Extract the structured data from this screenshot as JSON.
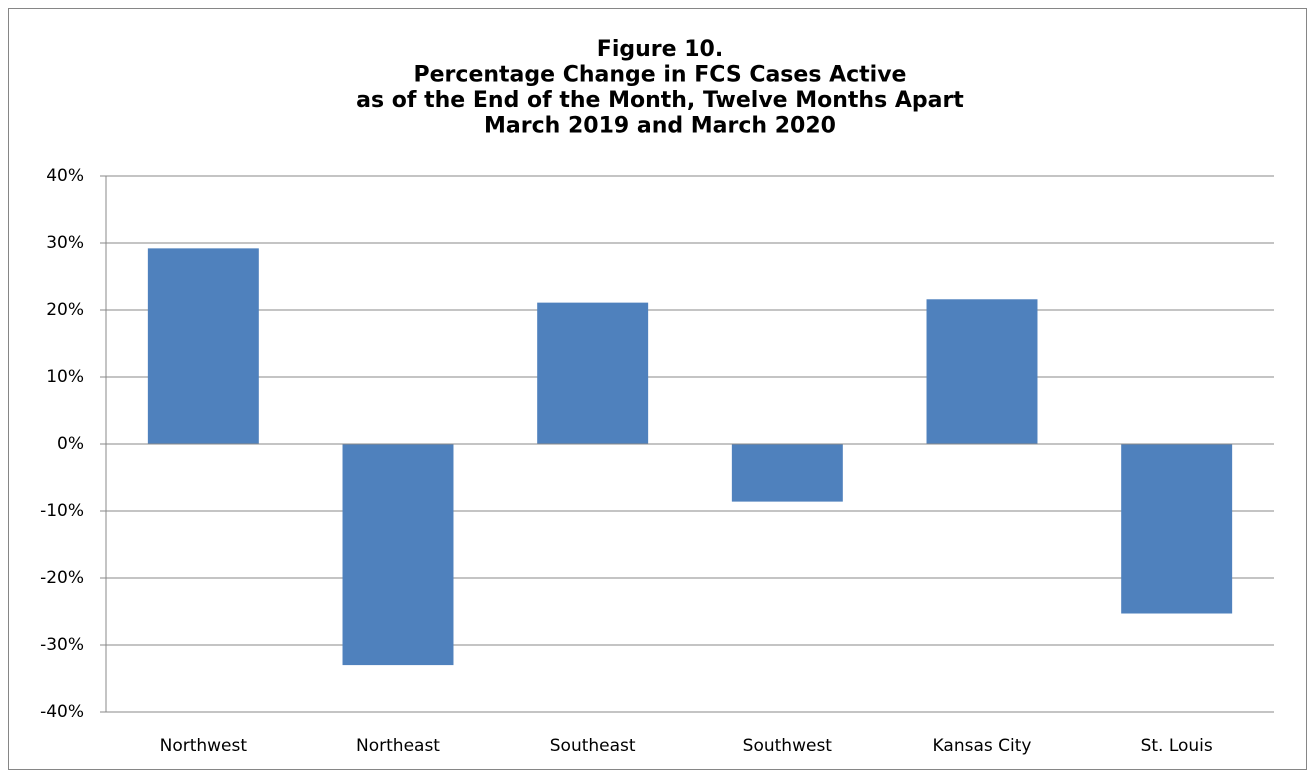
{
  "chart_data": {
    "type": "bar",
    "title": [
      "Figure 10.",
      "Percentage Change in FCS Cases Active",
      "as of the End of the Month, Twelve Months Apart",
      "March 2019 and March 2020"
    ],
    "categories": [
      "Northwest",
      "Northeast",
      "Southeast",
      "Southwest",
      "Kansas City",
      "St. Louis"
    ],
    "values": [
      29.2,
      -33,
      21.1,
      -8.6,
      21.6,
      -25.3
    ],
    "color": "#4f81bd",
    "ylim": [
      -40,
      40
    ],
    "yticks": [
      {
        "value": -40,
        "label": "-40%"
      },
      {
        "value": -30,
        "label": "-30%"
      },
      {
        "value": -20,
        "label": "-20%"
      },
      {
        "value": -10,
        "label": "-10%"
      },
      {
        "value": 0,
        "label": "0%"
      },
      {
        "value": 10,
        "label": "10%"
      },
      {
        "value": 20,
        "label": "20%"
      },
      {
        "value": 30,
        "label": "30%"
      },
      {
        "value": 40,
        "label": "40%"
      }
    ],
    "grid": true
  }
}
